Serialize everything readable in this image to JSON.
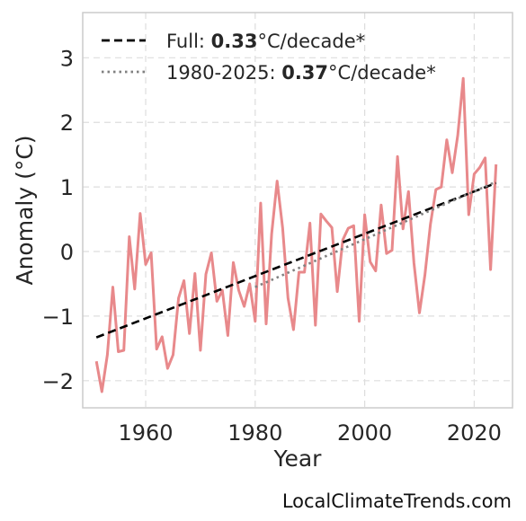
{
  "chart_data": {
    "type": "line",
    "xlabel": "Year",
    "ylabel": "Anomaly (°C)",
    "xlim": [
      1948.5,
      2027
    ],
    "ylim": [
      -2.42,
      3.7
    ],
    "xticks": [
      1960,
      1980,
      2000,
      2020
    ],
    "xtick_labels": [
      "1960",
      "1980",
      "2000",
      "2020"
    ],
    "yticks": [
      -2,
      -1,
      0,
      1,
      2,
      3
    ],
    "ytick_labels": [
      "−2",
      "−1",
      "0",
      "1",
      "2",
      "3"
    ],
    "grid": true,
    "legend_position": "top-left",
    "series": [
      {
        "role": "data",
        "color": "#e8898b",
        "x": [
          1951,
          1952,
          1953,
          1954,
          1955,
          1956,
          1957,
          1958,
          1959,
          1960,
          1961,
          1962,
          1963,
          1964,
          1965,
          1966,
          1967,
          1968,
          1969,
          1970,
          1971,
          1972,
          1973,
          1974,
          1975,
          1976,
          1977,
          1978,
          1979,
          1980,
          1981,
          1982,
          1983,
          1984,
          1985,
          1986,
          1987,
          1988,
          1989,
          1990,
          1991,
          1992,
          1993,
          1994,
          1995,
          1996,
          1997,
          1998,
          1999,
          2000,
          2001,
          2002,
          2003,
          2004,
          2005,
          2006,
          2007,
          2008,
          2009,
          2010,
          2011,
          2012,
          2013,
          2014,
          2015,
          2016,
          2017,
          2018,
          2019,
          2020,
          2021,
          2022,
          2023,
          2024
        ],
        "y": [
          -1.7,
          -2.17,
          -1.6,
          -0.55,
          -1.55,
          -1.53,
          0.23,
          -0.58,
          0.59,
          -0.2,
          -0.02,
          -1.51,
          -1.32,
          -1.81,
          -1.6,
          -0.72,
          -0.45,
          -1.27,
          -0.34,
          -1.53,
          -0.35,
          -0.02,
          -0.77,
          -0.6,
          -1.3,
          -0.17,
          -0.6,
          -0.85,
          -0.5,
          -1.08,
          0.75,
          -1.12,
          0.27,
          1.09,
          0.37,
          -0.72,
          -1.21,
          -0.32,
          -0.32,
          0.44,
          -1.14,
          0.58,
          0.47,
          0.37,
          -0.62,
          0.18,
          0.36,
          0.4,
          -1.08,
          0.57,
          -0.16,
          -0.3,
          0.72,
          -0.03,
          0.02,
          1.47,
          0.35,
          0.93,
          -0.18,
          -0.95,
          -0.36,
          0.42,
          0.96,
          1.0,
          1.73,
          1.22,
          1.8,
          2.68,
          0.57,
          1.2,
          1.3,
          1.45,
          -0.28,
          1.35
        ]
      },
      {
        "role": "trend-full",
        "name": "Full: 0.33°C/decade*",
        "color": "#000000",
        "x": [
          1951,
          2024
        ],
        "y": [
          -1.33,
          1.06
        ]
      },
      {
        "role": "trend-recent",
        "name": "1980-2025: 0.37°C/decade*",
        "color": "#808080",
        "x": [
          1980,
          2024
        ],
        "y": [
          -0.55,
          1.08
        ]
      }
    ],
    "legend": [
      {
        "prefix": "Full: ",
        "value": "0.33",
        "suffix": "°C/decade*",
        "style": "dashed",
        "color": "#000000"
      },
      {
        "prefix": "1980-2025: ",
        "value": "0.37",
        "suffix": "°C/decade*",
        "style": "dotted",
        "color": "#808080"
      }
    ]
  },
  "credit": "LocalClimateTrends.com"
}
